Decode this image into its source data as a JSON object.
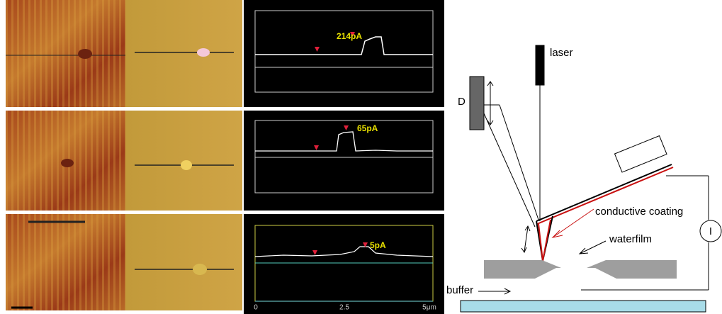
{
  "profiles": [
    {
      "label": "214pA"
    },
    {
      "label": "65pA"
    },
    {
      "label": "5pA"
    }
  ],
  "x_axis": [
    "0",
    "2.5",
    "5μm"
  ],
  "diagram": {
    "laser": "laser",
    "detector": "D",
    "coating": "conductive coating",
    "water": "waterfilm",
    "buffer": "buffer",
    "current": "I"
  }
}
